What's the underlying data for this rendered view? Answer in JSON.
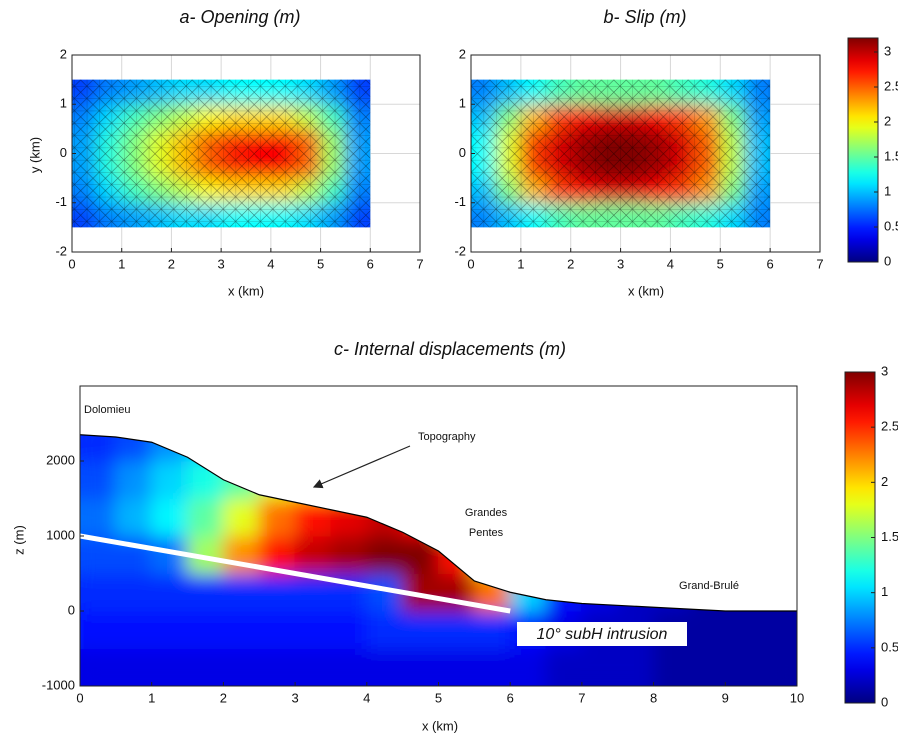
{
  "chart_data": [
    {
      "type": "heatmap",
      "title": "a- Opening (m)",
      "xlabel": "x (km)",
      "ylabel": "y (km)",
      "colormap": "jet",
      "grid": true,
      "mesh": true,
      "x": [
        0.25,
        0.75,
        1.25,
        1.75,
        2.25,
        2.75,
        3.25,
        3.75,
        4.25,
        4.75,
        5.25,
        5.75
      ],
      "y": [
        -1.25,
        -0.75,
        -0.25,
        0.25,
        0.75,
        1.25
      ],
      "z": [
        [
          0.6,
          0.8,
          0.9,
          1.0,
          1.1,
          1.1,
          1.2,
          1.2,
          1.2,
          1.1,
          0.9,
          0.6
        ],
        [
          0.8,
          1.1,
          1.4,
          1.6,
          1.8,
          2.0,
          2.1,
          2.1,
          2.1,
          1.8,
          1.4,
          0.8
        ],
        [
          0.9,
          1.3,
          1.6,
          1.9,
          2.2,
          2.5,
          2.7,
          2.8,
          2.8,
          2.5,
          1.7,
          0.9
        ],
        [
          0.9,
          1.3,
          1.6,
          1.9,
          2.2,
          2.5,
          2.7,
          2.8,
          2.8,
          2.5,
          1.7,
          0.9
        ],
        [
          0.8,
          1.1,
          1.4,
          1.6,
          1.8,
          2.0,
          2.1,
          2.1,
          2.1,
          1.8,
          1.4,
          0.8
        ],
        [
          0.6,
          0.8,
          0.9,
          1.0,
          1.1,
          1.1,
          1.2,
          1.2,
          1.2,
          1.1,
          0.9,
          0.6
        ]
      ],
      "xlim": [
        0,
        7
      ],
      "ylim": [
        -2,
        2
      ],
      "xticks": [
        0,
        1,
        2,
        3,
        4,
        5,
        6,
        7
      ],
      "yticks": [
        -2,
        -1,
        0,
        1,
        2
      ]
    },
    {
      "type": "heatmap",
      "title": "b- Slip (m)",
      "xlabel": "x (km)",
      "colormap": "jet",
      "grid": true,
      "mesh": true,
      "x": [
        0.25,
        0.75,
        1.25,
        1.75,
        2.25,
        2.75,
        3.25,
        3.75,
        4.25,
        4.75,
        5.25,
        5.75
      ],
      "y": [
        -1.25,
        -0.75,
        -0.25,
        0.25,
        0.75,
        1.25
      ],
      "z": [
        [
          0.8,
          1.0,
          1.2,
          1.4,
          1.5,
          1.5,
          1.5,
          1.5,
          1.4,
          1.3,
          1.1,
          0.8
        ],
        [
          1.0,
          1.6,
          2.2,
          2.6,
          2.8,
          2.9,
          2.9,
          2.8,
          2.6,
          2.3,
          1.6,
          0.9
        ],
        [
          1.2,
          1.9,
          2.6,
          2.9,
          3.1,
          3.2,
          3.2,
          3.1,
          2.9,
          2.5,
          1.8,
          1.0
        ],
        [
          1.2,
          1.9,
          2.6,
          2.9,
          3.1,
          3.2,
          3.2,
          3.1,
          2.9,
          2.5,
          1.8,
          1.0
        ],
        [
          1.0,
          1.6,
          2.2,
          2.6,
          2.8,
          2.9,
          2.9,
          2.8,
          2.6,
          2.3,
          1.6,
          0.9
        ],
        [
          0.8,
          1.0,
          1.2,
          1.4,
          1.5,
          1.5,
          1.5,
          1.5,
          1.4,
          1.3,
          1.1,
          0.8
        ]
      ],
      "xlim": [
        0,
        7
      ],
      "ylim": [
        -2,
        2
      ],
      "xticks": [
        0,
        1,
        2,
        3,
        4,
        5,
        6,
        7
      ],
      "yticks": [
        -2,
        -1,
        0,
        1,
        2
      ],
      "colorbar": {
        "lim": [
          0,
          3.2
        ],
        "ticks": [
          0,
          0.5,
          1,
          1.5,
          2,
          2.5,
          3
        ]
      }
    },
    {
      "type": "heatmap",
      "title": "c- Internal displacements (m)",
      "xlabel": "x (km)",
      "ylabel": "z (m)",
      "colormap": "jet",
      "grid": false,
      "mesh": false,
      "x": [
        0.25,
        0.75,
        1.25,
        1.75,
        2.25,
        2.75,
        3.25,
        3.75,
        4.25,
        4.75,
        5.25,
        5.75,
        6.25,
        6.75,
        7.25,
        7.75,
        8.25,
        8.75,
        9.25,
        9.75
      ],
      "y": [
        -750,
        -250,
        250,
        750,
        1250,
        1750,
        2250
      ],
      "z": [
        [
          0.3,
          0.3,
          0.3,
          0.3,
          0.3,
          0.3,
          0.3,
          0.3,
          0.3,
          0.3,
          0.3,
          0.3,
          0.3,
          0.2,
          0.2,
          0.2,
          0.1,
          0.1,
          0.1,
          0.1
        ],
        [
          0.4,
          0.4,
          0.4,
          0.4,
          0.4,
          0.4,
          0.4,
          0.4,
          0.5,
          0.5,
          0.5,
          0.5,
          0.4,
          0.3,
          0.2,
          0.2,
          0.1,
          0.1,
          0.1,
          0.1
        ],
        [
          0.5,
          0.5,
          0.5,
          0.5,
          0.5,
          0.5,
          0.5,
          0.5,
          0.6,
          2.9,
          2.9,
          2.3,
          1.0,
          0.4,
          0.3,
          0.2,
          0.2,
          0.1,
          0.1,
          0.1
        ],
        [
          0.6,
          0.6,
          0.7,
          1.6,
          2.2,
          2.6,
          2.8,
          2.9,
          3.0,
          3.0,
          2.6,
          1.8,
          0.8,
          0.5,
          0.4,
          0.3,
          0.3,
          0.2,
          0.2,
          0.2
        ],
        [
          0.7,
          0.9,
          1.1,
          1.4,
          1.8,
          2.3,
          2.6,
          2.7,
          2.8,
          2.6,
          2.0,
          1.2,
          0.6,
          0.4,
          0.3,
          0.3,
          0.2,
          0.2,
          0.2,
          0.2
        ],
        [
          0.6,
          0.8,
          1.0,
          1.2,
          1.4,
          1.8,
          2.0,
          2.1,
          2.0,
          1.8,
          1.2,
          0.8,
          0.5,
          0.4,
          0.3,
          0.3,
          0.2,
          0.2,
          0.2,
          0.2
        ],
        [
          0.5,
          0.6,
          0.8,
          1.0,
          1.2,
          1.4,
          1.5,
          1.5,
          1.4,
          1.2,
          0.9,
          0.6,
          0.4,
          0.3,
          0.3,
          0.2,
          0.2,
          0.2,
          0.2,
          0.2
        ]
      ],
      "xlim": [
        0,
        10
      ],
      "ylim": [
        -1000,
        3000
      ],
      "xticks": [
        0,
        1,
        2,
        3,
        4,
        5,
        6,
        7,
        8,
        9,
        10
      ],
      "yticks": [
        -1000,
        0,
        1000,
        2000
      ],
      "topography": {
        "x": [
          0,
          0.5,
          1,
          1.5,
          2,
          2.5,
          3,
          3.5,
          4,
          4.5,
          5,
          5.5,
          6,
          6.5,
          7,
          8,
          9,
          10
        ],
        "z": [
          2350,
          2320,
          2250,
          2050,
          1750,
          1550,
          1450,
          1350,
          1250,
          1050,
          800,
          400,
          250,
          150,
          100,
          50,
          0,
          0
        ]
      },
      "intrusion": {
        "x": [
          0,
          6
        ],
        "z": [
          1000,
          0
        ]
      },
      "annotations": [
        "Dolomieu",
        "Topography",
        "Grandes",
        "Pentes",
        "Grand-Brulé",
        "10° subH intrusion"
      ],
      "colorbar": {
        "lim": [
          0,
          3
        ],
        "ticks": [
          0,
          0.5,
          1,
          1.5,
          2,
          2.5,
          3
        ]
      }
    }
  ]
}
